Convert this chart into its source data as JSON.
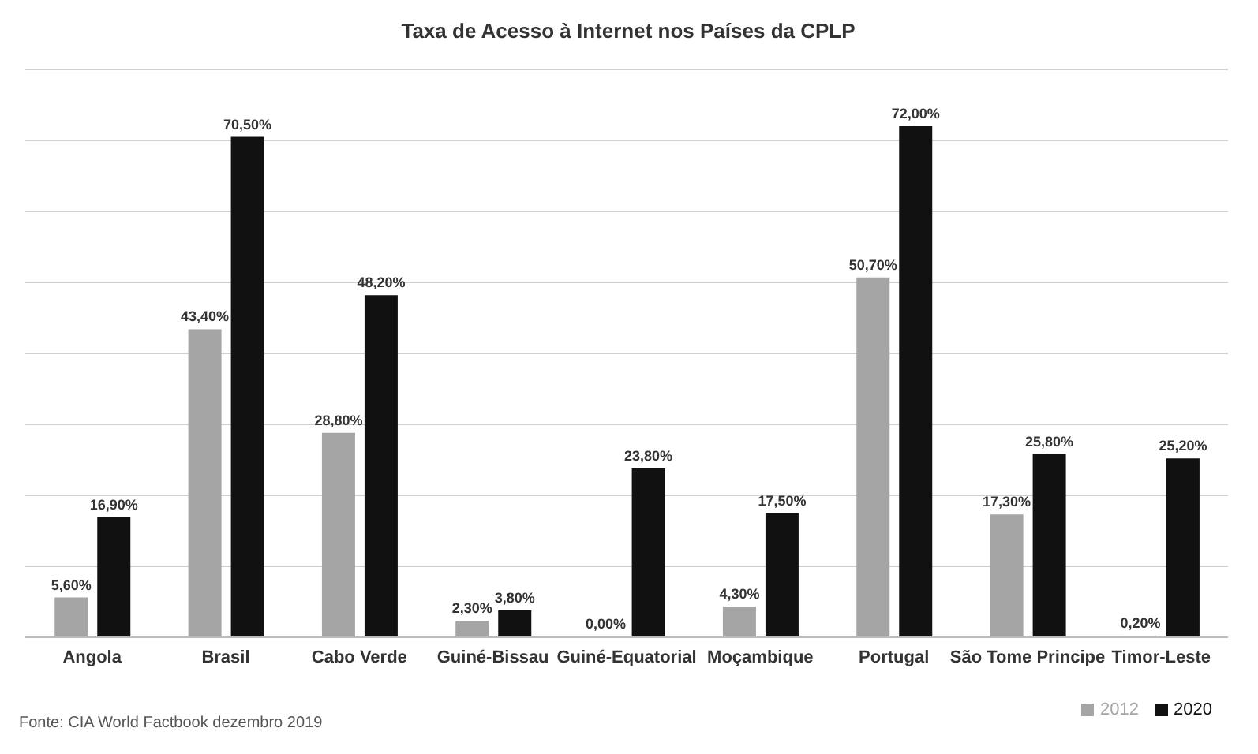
{
  "chart_data": {
    "type": "bar",
    "title": "Taxa de Acesso à Internet nos Países da CPLP",
    "categories": [
      "Angola",
      "Brasil",
      "Cabo Verde",
      "Guiné-Bissau",
      "Guiné-Equatorial",
      "Moçambique",
      "Portugal",
      "São Tome Principe",
      "Timor-Leste"
    ],
    "series": [
      {
        "name": "2012",
        "color": "#a5a5a5",
        "values": [
          5.6,
          43.4,
          28.8,
          2.3,
          0,
          4.3,
          50.7,
          17.3,
          0.2
        ],
        "value_labels": [
          "5,60%",
          "43,40%",
          "28,80%",
          "2,30%",
          "0,00%",
          "4,30%",
          "50,70%",
          "17,30%",
          "0,20%"
        ]
      },
      {
        "name": "2020",
        "color": "#111111",
        "values": [
          16.9,
          70.5,
          48.2,
          3.8,
          23.8,
          17.5,
          72,
          25.8,
          25.2
        ],
        "value_labels": [
          "16,90%",
          "70,50%",
          "48,20%",
          "3,80%",
          "23,80%",
          "17,50%",
          "72,00%",
          "25,80%",
          "25,20%"
        ]
      }
    ],
    "ylim": [
      0,
      80
    ],
    "yticks": [
      0,
      10,
      20,
      30,
      40,
      50,
      60,
      70,
      80
    ],
    "tick_labels": "x",
    "grid": "y",
    "legend": "bottom right",
    "annotations": [
      "Fonte: CIA World Factbook dezembro 2019"
    ]
  }
}
